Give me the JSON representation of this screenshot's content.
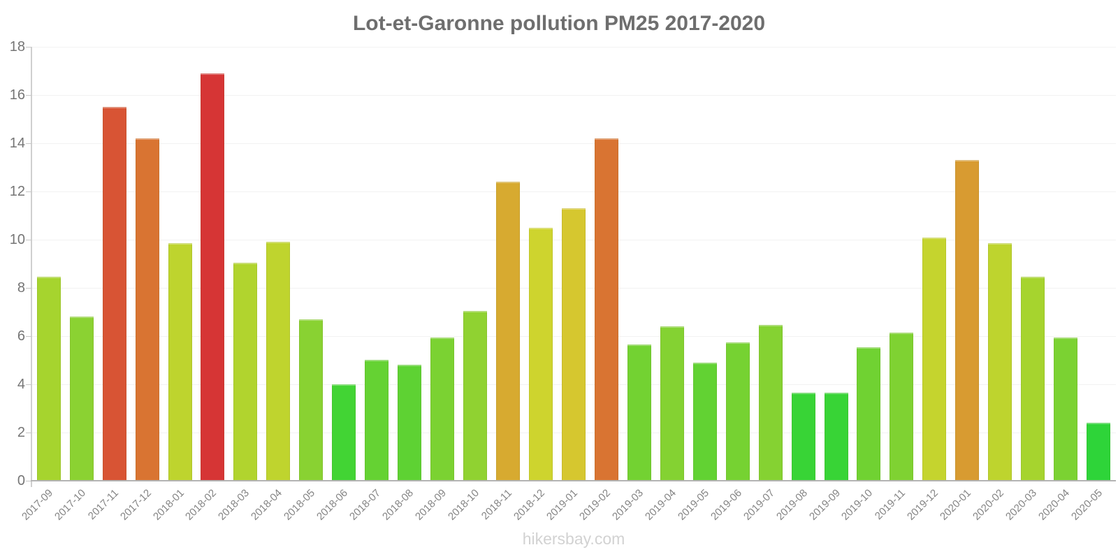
{
  "page": {
    "title": "Lot-et-Garonne pollution PM25 2017-2020",
    "watermark": "hikersbay.com"
  },
  "chart_data": {
    "type": "bar",
    "title": "Lot-et-Garonne pollution PM25 2017-2020",
    "xlabel": "",
    "ylabel": "",
    "ylim": [
      0,
      18
    ],
    "yticks": [
      0,
      2,
      4,
      6,
      8,
      10,
      12,
      14,
      16,
      18
    ],
    "grid": true,
    "legend_position": "none",
    "categories": [
      "2017-09",
      "2017-10",
      "2017-11",
      "2017-12",
      "2018-01",
      "2018-02",
      "2018-03",
      "2018-04",
      "2018-05",
      "2018-06",
      "2018-07",
      "2018-08",
      "2018-09",
      "2018-10",
      "2018-11",
      "2018-12",
      "2019-01",
      "2019-02",
      "2019-03",
      "2019-04",
      "2019-05",
      "2019-06",
      "2019-07",
      "2019-08",
      "2019-09",
      "2019-10",
      "2019-11",
      "2019-12",
      "2020-01",
      "2020-02",
      "2020-03",
      "2020-04",
      "2020-05"
    ],
    "values": [
      8.45,
      6.8,
      15.5,
      14.2,
      9.85,
      16.9,
      9.05,
      9.9,
      6.7,
      4.0,
      5.0,
      4.8,
      5.95,
      7.05,
      12.4,
      10.5,
      11.3,
      14.2,
      5.65,
      6.4,
      4.9,
      5.75,
      6.45,
      3.65,
      3.65,
      5.55,
      6.15,
      10.1,
      13.3,
      9.85,
      8.45,
      5.95,
      2.4
    ],
    "bar_colors": [
      "#a6d42e",
      "#8bd232",
      "#d85434",
      "#d97432",
      "#bed42e",
      "#d63535",
      "#b1d42e",
      "#bfd42e",
      "#89d232",
      "#42d434",
      "#65d233",
      "#5ed233",
      "#7bd232",
      "#90d231",
      "#d7aa30",
      "#ced42e",
      "#d6c72f",
      "#d97432",
      "#73d232",
      "#84d232",
      "#62d233",
      "#76d232",
      "#85d232",
      "#38d436",
      "#38d436",
      "#70d232",
      "#7fd232",
      "#c5d42e",
      "#d89b31",
      "#bed42e",
      "#a6d42e",
      "#7bd232",
      "#2ed439"
    ],
    "axis_color": "#b3b3b3",
    "grid_color": "#f2f2f2",
    "title_color": "#6e6e6e",
    "tick_label_color": "#757575",
    "x_label_color": "#848484",
    "watermark_color": "#d2d2d2"
  }
}
